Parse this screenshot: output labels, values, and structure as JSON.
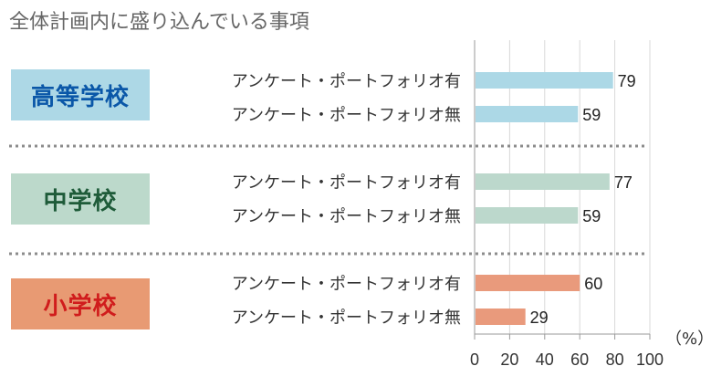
{
  "title": "全体計画内に盛り込んでいる事項",
  "chart_data": {
    "type": "bar",
    "orientation": "horizontal",
    "unit": "（%）",
    "xlim": [
      0,
      100
    ],
    "xticks": [
      "0",
      "20",
      "40",
      "60",
      "80",
      "100"
    ],
    "grid": true,
    "groups": [
      {
        "name": "高等学校",
        "box_color": "#add8e6",
        "text_color": "#0a57a8",
        "bar_color": "#acd8e6",
        "rows": [
          {
            "label": "アンケート・ポートフォリオ有",
            "value": 79
          },
          {
            "label": "アンケート・ポートフォリオ無",
            "value": 59
          }
        ]
      },
      {
        "name": "中学校",
        "box_color": "#bcd9cb",
        "text_color": "#1e5b39",
        "bar_color": "#bcd8cc",
        "rows": [
          {
            "label": "アンケート・ポートフォリオ有",
            "value": 77
          },
          {
            "label": "アンケート・ポートフォリオ無",
            "value": 59
          }
        ]
      },
      {
        "name": "小学校",
        "box_color": "#e89a73",
        "text_color": "#d01c1c",
        "bar_color": "#e99a7c",
        "rows": [
          {
            "label": "アンケート・ポートフォリオ有",
            "value": 60
          },
          {
            "label": "アンケート・ポートフォリオ無",
            "value": 29
          }
        ]
      }
    ]
  }
}
